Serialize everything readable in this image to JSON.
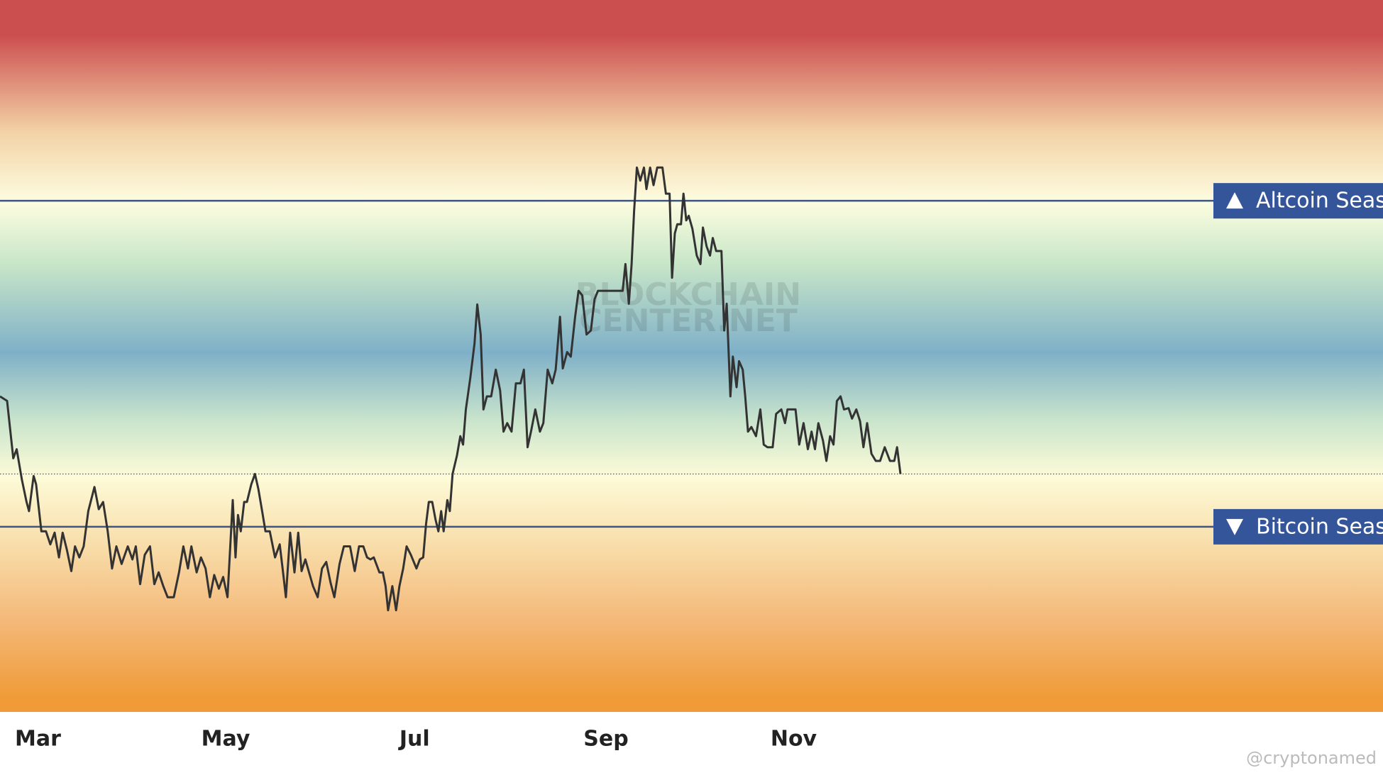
{
  "chart_data": {
    "type": "line",
    "x": [
      0.0,
      2.3,
      4.3,
      5.4,
      7.1,
      8.6,
      9.4,
      10.9,
      11.7,
      13.4,
      14.9,
      16.3,
      17.7,
      19.1,
      20.3,
      21.7,
      23.1,
      24.3,
      25.7,
      27.1,
      28.6,
      30.6,
      32.0,
      33.4,
      34.9,
      36.3,
      37.7,
      39.4,
      41.4,
      42.9,
      44.0,
      45.4,
      46.9,
      48.6,
      50.0,
      51.4,
      52.9,
      54.3,
      56.3,
      58.0,
      59.4,
      60.9,
      62.0,
      63.7,
      65.1,
      66.6,
      68.0,
      69.4,
      70.9,
      72.3,
      73.7,
      74.6,
      75.4,
      76.3,
      77.1,
      78.0,
      79.1,
      80.0,
      81.4,
      82.6,
      83.7,
      84.9,
      86.0,
      87.4,
      89.1,
      90.6,
      91.7,
      92.6,
      94.0,
      95.4,
      96.6,
      97.7,
      98.9,
      100.0,
      101.4,
      102.9,
      104.3,
      105.7,
      107.1,
      108.3,
      110.0,
      111.4,
      113.4,
      114.9,
      116.3,
      117.7,
      118.9,
      120.0,
      121.1,
      122.9,
      124.0,
      124.9,
      125.7,
      127.1,
      128.3,
      129.4,
      130.6,
      131.7,
      133.1,
      134.9,
      136.0,
      137.1,
      138.0,
      138.9,
      140.0,
      141.1,
      142.0,
      142.9,
      143.7,
      144.9,
      145.7,
      146.6,
      148.0,
      149.1,
      150.0,
      150.9,
      152.3,
      153.7,
      154.6,
      155.7,
      156.6,
      157.7,
      159.1,
      160.6,
      162.0,
      163.1,
      164.3,
      165.7,
      167.1,
      168.6,
      169.7,
      170.9,
      172.0,
      173.4,
      174.9,
      176.0,
      177.4,
      178.9,
      180.0,
      181.4,
      182.3,
      183.7,
      184.9,
      186.3,
      187.4,
      188.6,
      190.0,
      191.4,
      192.6,
      193.7,
      195.7,
      197.7,
      200.0,
      201.7,
      202.6,
      203.7,
      204.6,
      205.4,
      206.3,
      207.4,
      208.6,
      209.4,
      210.6,
      211.7,
      212.9,
      214.6,
      215.7,
      216.9,
      217.7,
      218.6,
      219.4,
      220.6,
      221.4,
      222.3,
      223.1,
      224.3,
      225.7,
      226.9,
      227.7,
      228.9,
      230.0,
      230.9,
      232.0,
      233.7,
      234.6,
      235.4,
      236.6,
      237.4,
      238.6,
      239.4,
      240.6,
      241.4,
      242.3,
      243.4,
      244.9,
      246.3,
      247.4,
      248.6,
      250.3,
      251.4,
      253.1,
      254.3,
      255.1,
      256.3,
      257.7,
      258.9,
      260.3,
      261.7,
      262.9,
      264.0,
      265.1,
      266.6,
      267.7,
      268.9,
      270.0,
      271.1,
      272.3,
      273.4,
      274.9,
      276.0,
      277.4,
      278.6,
      279.7,
      280.9,
      282.3,
      283.7,
      285.1,
      286.6,
      288.3,
      289.7,
      290.6,
      291.7
    ],
    "series": [
      {
        "color": "#333333",
        "values": [
          45.0,
          44.3,
          35.5,
          36.9,
          32.2,
          28.8,
          27.4,
          32.8,
          31.5,
          24.3,
          24.3,
          22.3,
          24.1,
          20.3,
          24.1,
          21.4,
          18.2,
          22.0,
          20.3,
          22.0,
          27.4,
          31.1,
          27.7,
          28.8,
          24.3,
          18.6,
          22.0,
          19.3,
          22.0,
          20.0,
          22.0,
          16.2,
          20.7,
          22.0,
          16.2,
          18.0,
          15.9,
          14.2,
          14.2,
          18.0,
          22.0,
          18.6,
          22.0,
          18.0,
          20.3,
          18.6,
          14.2,
          17.6,
          15.5,
          17.3,
          14.2,
          22.0,
          29.1,
          20.3,
          26.8,
          24.3,
          28.8,
          28.8,
          31.5,
          33.1,
          30.8,
          27.4,
          24.3,
          24.3,
          20.3,
          22.3,
          18.0,
          14.2,
          24.1,
          18.0,
          24.1,
          18.2,
          20.0,
          18.2,
          15.9,
          14.2,
          18.6,
          19.6,
          16.4,
          14.2,
          19.3,
          22.0,
          22.0,
          18.2,
          22.0,
          22.0,
          20.3,
          20.0,
          20.3,
          18.0,
          18.0,
          15.9,
          12.2,
          15.9,
          12.2,
          15.9,
          18.6,
          22.0,
          20.7,
          18.6,
          20.0,
          20.3,
          25.4,
          28.8,
          28.8,
          26.1,
          24.3,
          27.4,
          24.3,
          29.1,
          27.4,
          33.1,
          35.9,
          38.9,
          37.6,
          43.0,
          47.7,
          53.1,
          59.1,
          54.5,
          43.0,
          45.0,
          45.0,
          49.1,
          45.9,
          39.6,
          40.9,
          39.6,
          47.0,
          47.0,
          49.1,
          37.2,
          39.6,
          43.0,
          39.6,
          40.9,
          49.1,
          47.0,
          49.1,
          57.2,
          49.3,
          51.8,
          51.1,
          57.2,
          61.2,
          60.5,
          54.5,
          55.1,
          59.9,
          61.2,
          61.2,
          61.2,
          61.2,
          61.2,
          65.3,
          59.2,
          65.3,
          73.4,
          80.1,
          78.1,
          80.1,
          76.8,
          80.1,
          77.4,
          80.1,
          80.1,
          76.1,
          76.1,
          63.2,
          70.0,
          71.4,
          71.4,
          76.1,
          72.0,
          72.7,
          70.7,
          66.6,
          65.3,
          70.9,
          68.0,
          66.6,
          69.3,
          67.3,
          67.3,
          55.1,
          59.2,
          45.0,
          51.1,
          46.4,
          50.4,
          49.1,
          45.0,
          39.6,
          40.3,
          38.9,
          43.0,
          37.6,
          37.2,
          37.2,
          42.3,
          43.0,
          40.9,
          43.0,
          43.0,
          43.0,
          37.6,
          40.9,
          36.9,
          39.6,
          36.9,
          40.9,
          38.2,
          35.1,
          38.9,
          37.6,
          44.3,
          45.0,
          43.0,
          43.2,
          41.6,
          43.0,
          41.2,
          37.2,
          40.9,
          36.2,
          35.1,
          35.1,
          37.2,
          35.1,
          35.1,
          37.2,
          33.1
        ]
      }
    ],
    "xlim": [
      0,
      448
    ],
    "xticks": [
      {
        "value": 12.3,
        "label": "Mar"
      },
      {
        "value": 73.1,
        "label": "May"
      },
      {
        "value": 134.3,
        "label": "Jul"
      },
      {
        "value": 196.3,
        "label": "Sep"
      },
      {
        "value": 257.1,
        "label": "Nov"
      }
    ],
    "ylim": [
      -3.4,
      105.8
    ],
    "thresholds": [
      {
        "value": 75,
        "label": "Altcoin Season"
      },
      {
        "value": 25,
        "label": "Bitcoin Season"
      }
    ],
    "watermark": [
      "BLOCKCHAIN",
      "CENTER.NET"
    ],
    "credit": "@cryptonamed"
  }
}
